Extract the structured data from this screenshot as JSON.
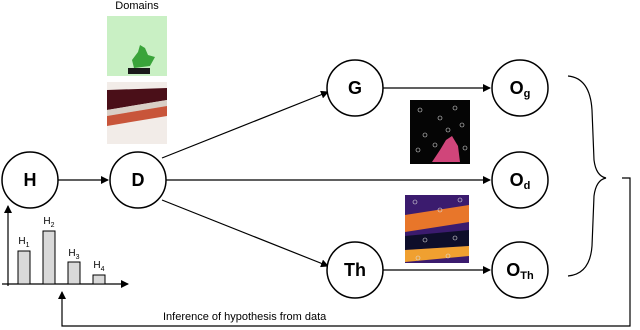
{
  "header": {
    "title": "Domains"
  },
  "nodes": [
    {
      "label": "H"
    },
    {
      "label": "D"
    },
    {
      "label": "G"
    },
    {
      "label": "Th"
    },
    {
      "label": "O",
      "sub": "g"
    },
    {
      "label": "O",
      "sub": "d"
    },
    {
      "label": "O",
      "sub": "Th"
    }
  ],
  "histogram": {
    "labels": [
      {
        "label": "H",
        "sub": "1"
      },
      {
        "label": "H",
        "sub": "2"
      },
      {
        "label": "H",
        "sub": "3"
      },
      {
        "label": "H",
        "sub": "4"
      }
    ]
  },
  "caption": "Inference of hypothesis from data"
}
